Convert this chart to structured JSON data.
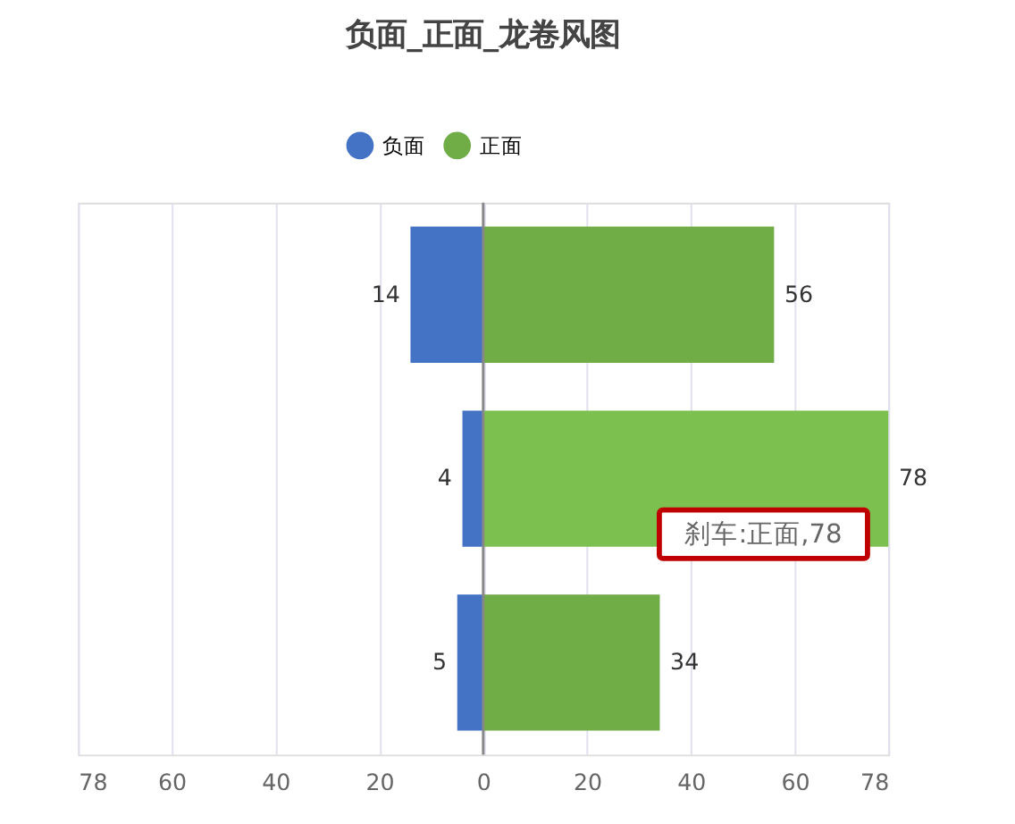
{
  "chart_data": {
    "type": "bar",
    "title": "负面_正面_龙卷风图",
    "orientation": "horizontal",
    "categories": [
      null,
      null,
      null
    ],
    "series": [
      {
        "name": "负面",
        "color": "#4472c4",
        "base": [
          -14,
          -4,
          -5
        ],
        "values": [
          14,
          4,
          5
        ]
      },
      {
        "name": "正面",
        "color": "#70ad47",
        "colors": [
          "#70ad47",
          "#7cc04f",
          "#70ad47"
        ],
        "values": [
          56,
          78,
          34
        ]
      }
    ],
    "data_labels": true,
    "xlim": [
      -78,
      78
    ],
    "xticks": [
      {
        "value": -78,
        "label": "78"
      },
      {
        "value": -60,
        "label": "60"
      },
      {
        "value": -40,
        "label": "40"
      },
      {
        "value": -20,
        "label": "20"
      },
      0,
      20,
      40,
      60,
      78
    ],
    "grid": "x",
    "legend": "top",
    "marker": "circle",
    "annotations": [
      "刹车:正面,78"
    ]
  }
}
